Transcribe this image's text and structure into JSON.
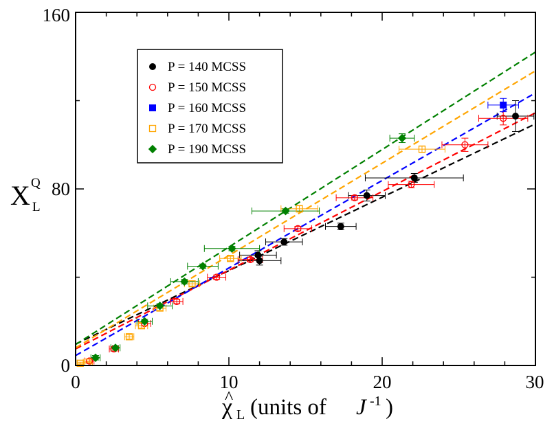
{
  "chart_data": {
    "type": "scatter",
    "xlabel": {
      "symbol": "χ",
      "subscript": "L",
      "text": "(units of ",
      "unit": "J",
      "unit_sup": "-1",
      "close": ")"
    },
    "ylabel": {
      "symbol": "X",
      "superscript": "Q",
      "subscript": "L"
    },
    "xlim": [
      0,
      30
    ],
    "ylim": [
      0,
      160
    ],
    "x_ticks": [
      "0",
      "10",
      "20",
      "30"
    ],
    "y_ticks": [
      "0",
      "80",
      "160"
    ],
    "grid": false,
    "legend_position": "top-left",
    "series": [
      {
        "name": "P = 140 MCSS",
        "color": "#000000",
        "marker": "circle-filled",
        "points": [
          {
            "x": 11.9,
            "y": 50,
            "xerr": 1.2,
            "yerr": 2
          },
          {
            "x": 12.0,
            "y": 47.5,
            "xerr": 1.4,
            "yerr": 2
          },
          {
            "x": 13.6,
            "y": 56,
            "xerr": 1.2,
            "yerr": 1.5
          },
          {
            "x": 17.3,
            "y": 63,
            "xerr": 1.0,
            "yerr": 1.5
          },
          {
            "x": 19.0,
            "y": 77,
            "xerr": 1.2,
            "yerr": 2.5
          },
          {
            "x": 22.1,
            "y": 85,
            "xerr": 3.2,
            "yerr": 2
          },
          {
            "x": 28.7,
            "y": 113,
            "xerr": 1.2,
            "yerr": 7
          }
        ],
        "fit": [
          [
            0,
            9.7
          ],
          [
            30,
            109.5
          ]
        ]
      },
      {
        "name": "P = 150 MCSS",
        "color": "#ff0000",
        "marker": "circle-open",
        "points": [
          {
            "x": 0.9,
            "y": 2,
            "xerr": 0.3,
            "yerr": 1
          },
          {
            "x": 2.5,
            "y": 7.5,
            "xerr": 0.3,
            "yerr": 1
          },
          {
            "x": 4.5,
            "y": 19,
            "xerr": 0.4,
            "yerr": 1
          },
          {
            "x": 6.6,
            "y": 29,
            "xerr": 0.4,
            "yerr": 1
          },
          {
            "x": 9.2,
            "y": 40,
            "xerr": 0.6,
            "yerr": 1
          },
          {
            "x": 11.4,
            "y": 48,
            "xerr": 0.8,
            "yerr": 1
          },
          {
            "x": 14.5,
            "y": 62,
            "xerr": 0.9,
            "yerr": 1
          },
          {
            "x": 18.2,
            "y": 76,
            "xerr": 1.2,
            "yerr": 1
          },
          {
            "x": 21.9,
            "y": 82,
            "xerr": 1.5,
            "yerr": 1.5
          },
          {
            "x": 25.4,
            "y": 100,
            "xerr": 1.5,
            "yerr": 3
          },
          {
            "x": 27.9,
            "y": 112,
            "xerr": 1.6,
            "yerr": 3
          }
        ],
        "fit": [
          [
            0,
            7.5
          ],
          [
            30,
            114.5
          ]
        ]
      },
      {
        "name": "P = 160 MCSS",
        "color": "#0000ff",
        "marker": "square-filled",
        "points": [
          {
            "x": 27.9,
            "y": 118,
            "xerr": 1.0,
            "yerr": 3
          }
        ],
        "fit": [
          [
            0,
            4.5
          ],
          [
            30,
            123.5
          ]
        ]
      },
      {
        "name": "P = 170 MCSS",
        "color": "#ffa500",
        "marker": "square-open",
        "points": [
          {
            "x": 0.3,
            "y": 1,
            "xerr": 0.2,
            "yerr": 0.5
          },
          {
            "x": 0.8,
            "y": 1.5,
            "xerr": 0.3,
            "yerr": 0.5
          },
          {
            "x": 3.5,
            "y": 13,
            "xerr": 0.3,
            "yerr": 1
          },
          {
            "x": 4.3,
            "y": 18,
            "xerr": 0.4,
            "yerr": 1
          },
          {
            "x": 5.5,
            "y": 26,
            "xerr": 0.4,
            "yerr": 1
          },
          {
            "x": 7.6,
            "y": 37,
            "xerr": 0.5,
            "yerr": 1
          },
          {
            "x": 10.1,
            "y": 48.5,
            "xerr": 0.7,
            "yerr": 1
          },
          {
            "x": 14.6,
            "y": 71,
            "xerr": 1.2,
            "yerr": 1.5
          },
          {
            "x": 22.6,
            "y": 98,
            "xerr": 1.5,
            "yerr": 1.5
          }
        ],
        "fit": [
          [
            0,
            8.0
          ],
          [
            30,
            133.5
          ]
        ]
      },
      {
        "name": "P = 190 MCSS",
        "color": "#008000",
        "marker": "diamond-filled",
        "points": [
          {
            "x": 1.3,
            "y": 3.5,
            "xerr": 0.3,
            "yerr": 1
          },
          {
            "x": 2.6,
            "y": 8,
            "xerr": 0.3,
            "yerr": 1
          },
          {
            "x": 4.5,
            "y": 20,
            "xerr": 0.5,
            "yerr": 1
          },
          {
            "x": 5.5,
            "y": 27,
            "xerr": 0.8,
            "yerr": 1
          },
          {
            "x": 7.1,
            "y": 38,
            "xerr": 0.9,
            "yerr": 1
          },
          {
            "x": 8.3,
            "y": 45,
            "xerr": 1.0,
            "yerr": 1
          },
          {
            "x": 10.2,
            "y": 53,
            "xerr": 1.8,
            "yerr": 1
          },
          {
            "x": 13.7,
            "y": 70,
            "xerr": 2.2,
            "yerr": 1
          },
          {
            "x": 21.3,
            "y": 103,
            "xerr": 0.8,
            "yerr": 2
          }
        ],
        "fit": [
          [
            0,
            9.5
          ],
          [
            30,
            142
          ]
        ]
      }
    ]
  }
}
